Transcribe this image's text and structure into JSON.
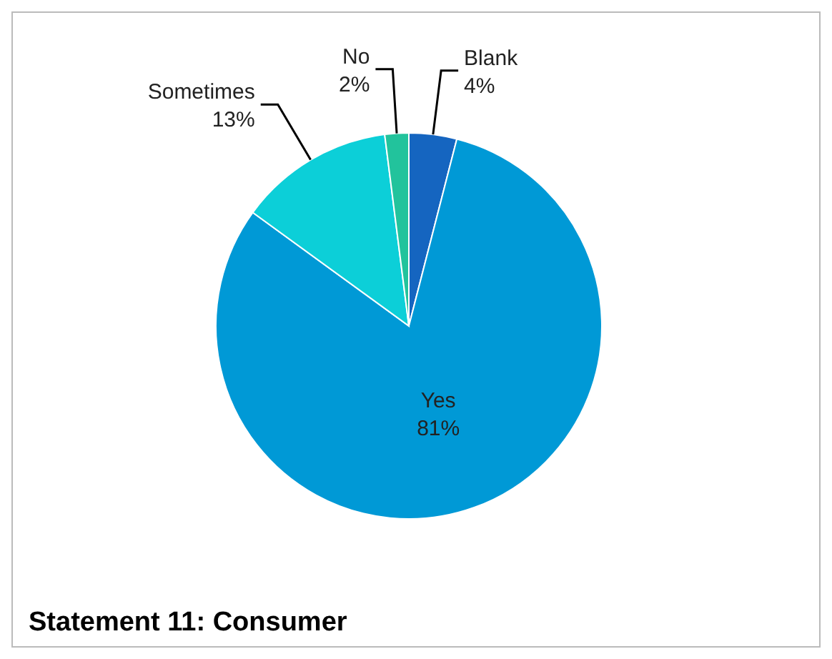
{
  "chart_data": {
    "type": "pie",
    "title": "Statement 11: Consumer",
    "categories": [
      "Blank",
      "Yes",
      "Sometimes",
      "No"
    ],
    "values": [
      4,
      81,
      13,
      2
    ],
    "value_labels": [
      "4%",
      "81%",
      "13%",
      "2%"
    ],
    "colors": [
      "#1565c0",
      "#0099d6",
      "#0ccfd8",
      "#22c39c"
    ]
  }
}
